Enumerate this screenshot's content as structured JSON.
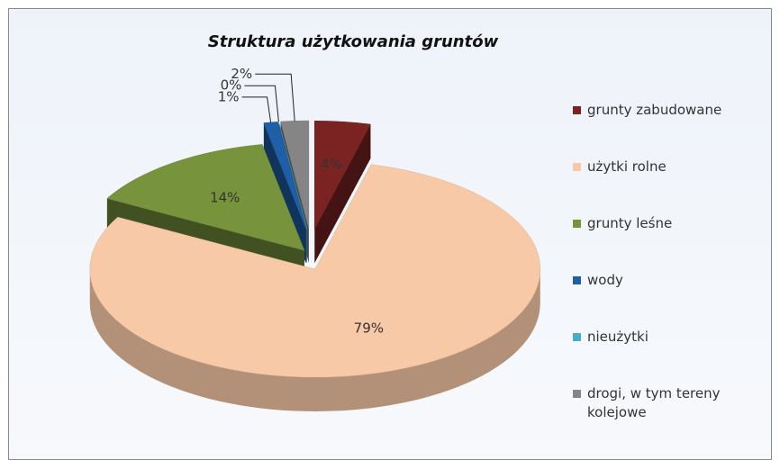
{
  "chart_data": {
    "type": "pie",
    "title": "Struktura użytkowania gruntów",
    "categories": [
      "grunty zabudowane",
      "użytki rolne",
      "grunty leśne",
      "wody",
      "nieużytki",
      "drogi, w tym tereny kolejowe"
    ],
    "values": [
      4,
      79,
      14,
      1,
      0,
      2
    ],
    "value_labels": [
      "4%",
      "79%",
      "14%",
      "1%",
      "0%",
      "2%"
    ],
    "colors": [
      "#7b2323",
      "#f8c9a6",
      "#77933c",
      "#1f5fa8",
      "#4aacc6",
      "#858585"
    ],
    "legend": "right"
  }
}
